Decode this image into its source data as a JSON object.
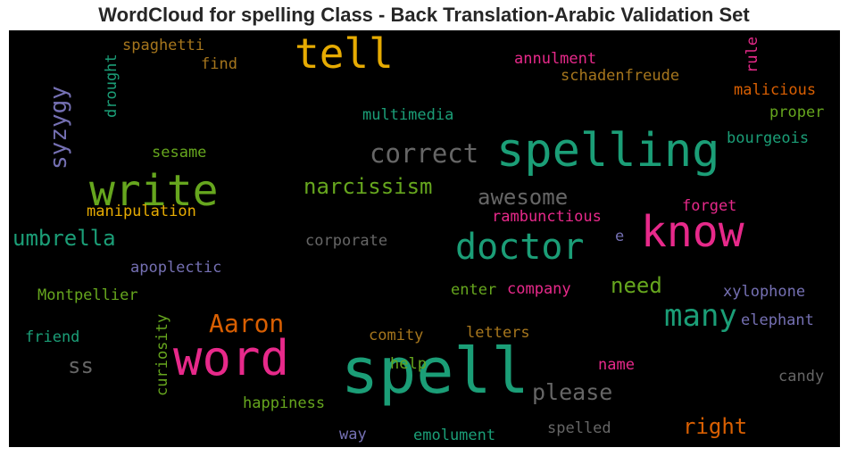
{
  "chart_data": {
    "type": "wordcloud",
    "title": "WordCloud for spelling Class - Back Translation-Arabic Validation Set",
    "background": "#000000",
    "colors": {
      "teal": "#1b9e77",
      "orange": "#d95f02",
      "purple": "#7570b3",
      "pink": "#e7298a",
      "green": "#66a61e",
      "gold": "#e6ab02",
      "brown": "#a6761d",
      "gray": "#666666"
    },
    "words": [
      {
        "text": "spell",
        "weight": 1.0,
        "color": "teal"
      },
      {
        "text": "spelling",
        "weight": 0.88,
        "color": "teal"
      },
      {
        "text": "word",
        "weight": 0.85,
        "color": "pink"
      },
      {
        "text": "know",
        "weight": 0.8,
        "color": "pink"
      },
      {
        "text": "write",
        "weight": 0.8,
        "color": "green"
      },
      {
        "text": "tell",
        "weight": 0.76,
        "color": "gold"
      },
      {
        "text": "doctor",
        "weight": 0.7,
        "color": "teal"
      },
      {
        "text": "many",
        "weight": 0.6,
        "color": "teal"
      },
      {
        "text": "correct",
        "weight": 0.5,
        "color": "gray"
      },
      {
        "text": "Aaron",
        "weight": 0.48,
        "color": "orange"
      },
      {
        "text": "syzygy",
        "weight": 0.43,
        "color": "purple"
      },
      {
        "text": "please",
        "weight": 0.43,
        "color": "gray"
      },
      {
        "text": "narcissism",
        "weight": 0.4,
        "color": "green"
      },
      {
        "text": "awesome",
        "weight": 0.4,
        "color": "gray"
      },
      {
        "text": "umbrella",
        "weight": 0.4,
        "color": "teal"
      },
      {
        "text": "right",
        "weight": 0.4,
        "color": "orange"
      },
      {
        "text": "need",
        "weight": 0.4,
        "color": "green"
      },
      {
        "text": "ss",
        "weight": 0.38,
        "color": "gray"
      },
      {
        "text": "curiosity",
        "weight": 0.29,
        "color": "green"
      },
      {
        "text": "drought",
        "weight": 0.28,
        "color": "teal"
      },
      {
        "text": "rule",
        "weight": 0.28,
        "color": "pink"
      },
      {
        "text": "spaghetti",
        "weight": 0.28,
        "color": "brown"
      },
      {
        "text": "find",
        "weight": 0.28,
        "color": "brown"
      },
      {
        "text": "annulment",
        "weight": 0.28,
        "color": "pink"
      },
      {
        "text": "schadenfreude",
        "weight": 0.28,
        "color": "brown"
      },
      {
        "text": "malicious",
        "weight": 0.28,
        "color": "orange"
      },
      {
        "text": "multimedia",
        "weight": 0.28,
        "color": "teal"
      },
      {
        "text": "proper",
        "weight": 0.28,
        "color": "green"
      },
      {
        "text": "bourgeois",
        "weight": 0.28,
        "color": "teal"
      },
      {
        "text": "sesame",
        "weight": 0.28,
        "color": "green"
      },
      {
        "text": "manipulation",
        "weight": 0.28,
        "color": "gold"
      },
      {
        "text": "forget",
        "weight": 0.28,
        "color": "pink"
      },
      {
        "text": "rambunctious",
        "weight": 0.28,
        "color": "pink"
      },
      {
        "text": "e",
        "weight": 0.28,
        "color": "purple"
      },
      {
        "text": "corporate",
        "weight": 0.28,
        "color": "gray"
      },
      {
        "text": "apoplectic",
        "weight": 0.28,
        "color": "purple"
      },
      {
        "text": "Montpellier",
        "weight": 0.28,
        "color": "green"
      },
      {
        "text": "enter",
        "weight": 0.28,
        "color": "green"
      },
      {
        "text": "company",
        "weight": 0.28,
        "color": "pink"
      },
      {
        "text": "xylophone",
        "weight": 0.28,
        "color": "purple"
      },
      {
        "text": "elephant",
        "weight": 0.28,
        "color": "purple"
      },
      {
        "text": "friend",
        "weight": 0.28,
        "color": "teal"
      },
      {
        "text": "comity",
        "weight": 0.28,
        "color": "brown"
      },
      {
        "text": "letters",
        "weight": 0.28,
        "color": "brown"
      },
      {
        "text": "help",
        "weight": 0.28,
        "color": "green"
      },
      {
        "text": "name",
        "weight": 0.28,
        "color": "pink"
      },
      {
        "text": "candy",
        "weight": 0.28,
        "color": "gray"
      },
      {
        "text": "happiness",
        "weight": 0.28,
        "color": "green"
      },
      {
        "text": "way",
        "weight": 0.28,
        "color": "purple"
      },
      {
        "text": "emolument",
        "weight": 0.28,
        "color": "teal"
      },
      {
        "text": "spelled",
        "weight": 0.28,
        "color": "gray"
      }
    ]
  }
}
